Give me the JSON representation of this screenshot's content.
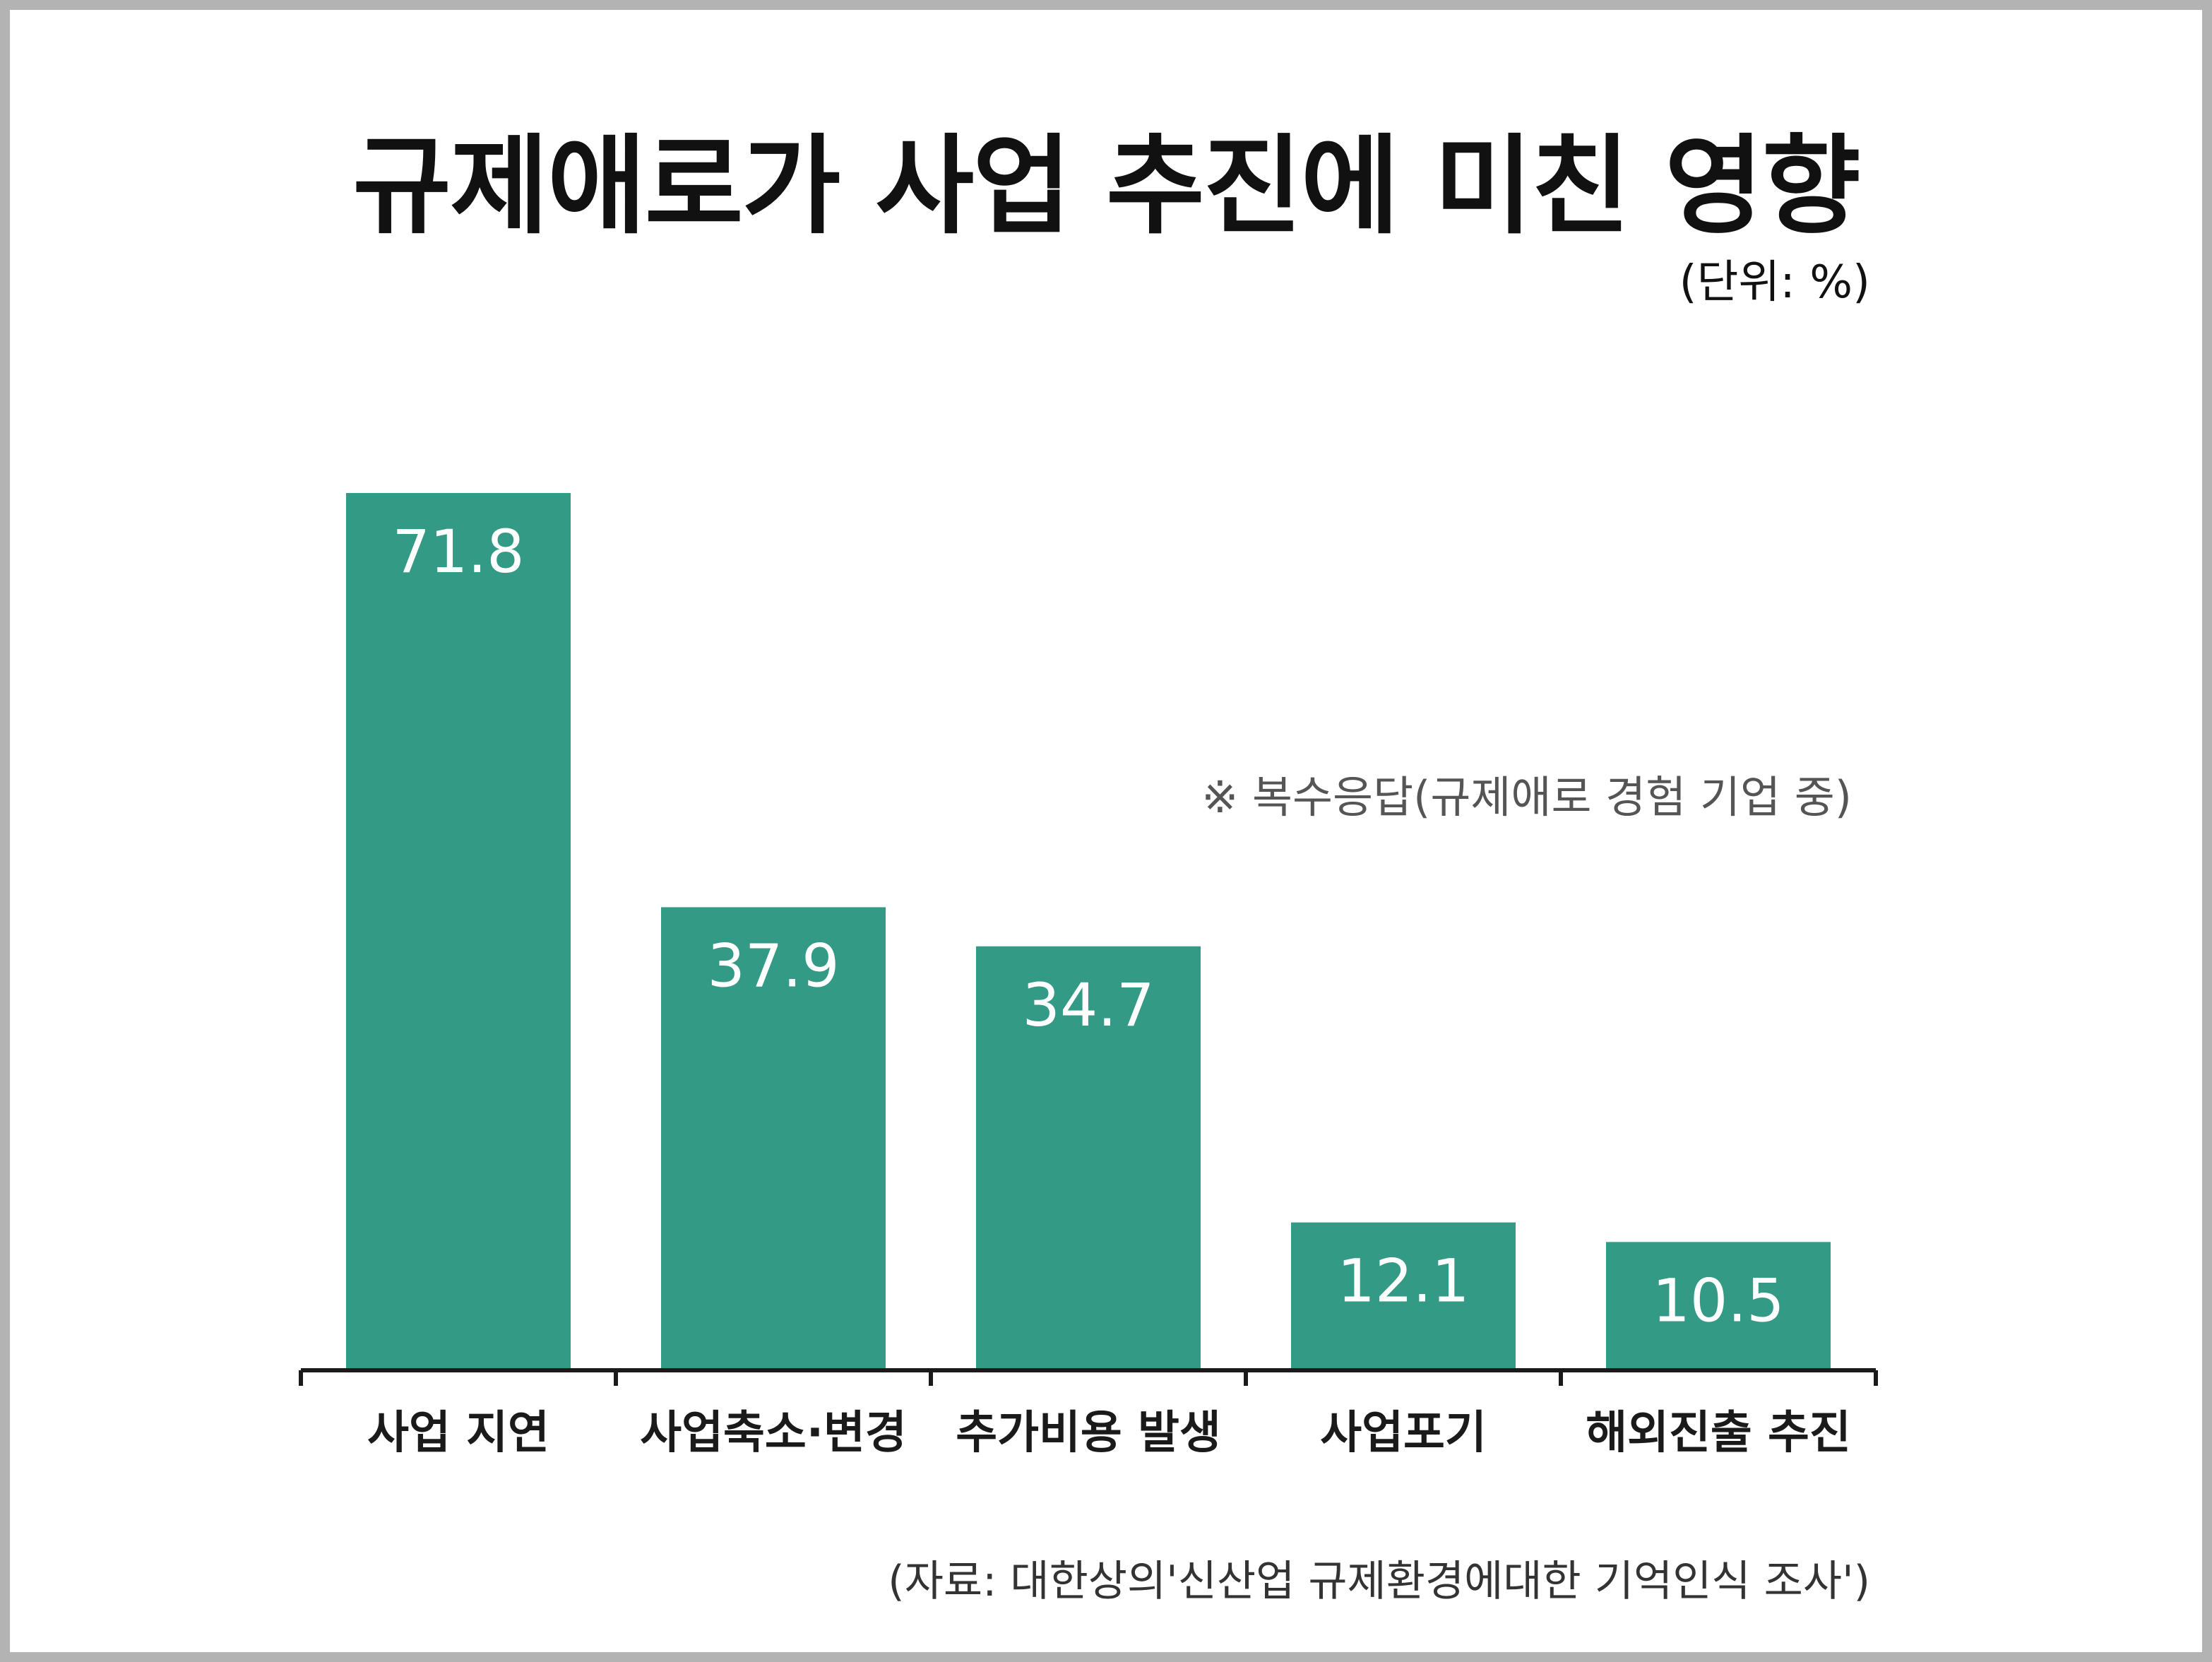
{
  "chart_data": {
    "type": "bar",
    "title": "규제애로가 사업 추진에 미친 영향",
    "unit": "(단위: %)",
    "note": "※ 복수응답(규제애로 경험 기업 중)",
    "source": "(자료: 대한상의'신산업 규제환경에대한 기억인식 조사')",
    "categories": [
      "사업 지연",
      "사업축소·변경",
      "추가비용 발생",
      "사업포기",
      "해외진출 추진"
    ],
    "values": [
      71.8,
      37.9,
      34.7,
      12.1,
      10.5
    ],
    "value_labels": [
      "71.8",
      "37.9",
      "34.7",
      "12.1",
      "10.5"
    ],
    "ylim": [
      0,
      71.8
    ],
    "grid": false,
    "legend": "none",
    "bar_color": "#339a85"
  }
}
